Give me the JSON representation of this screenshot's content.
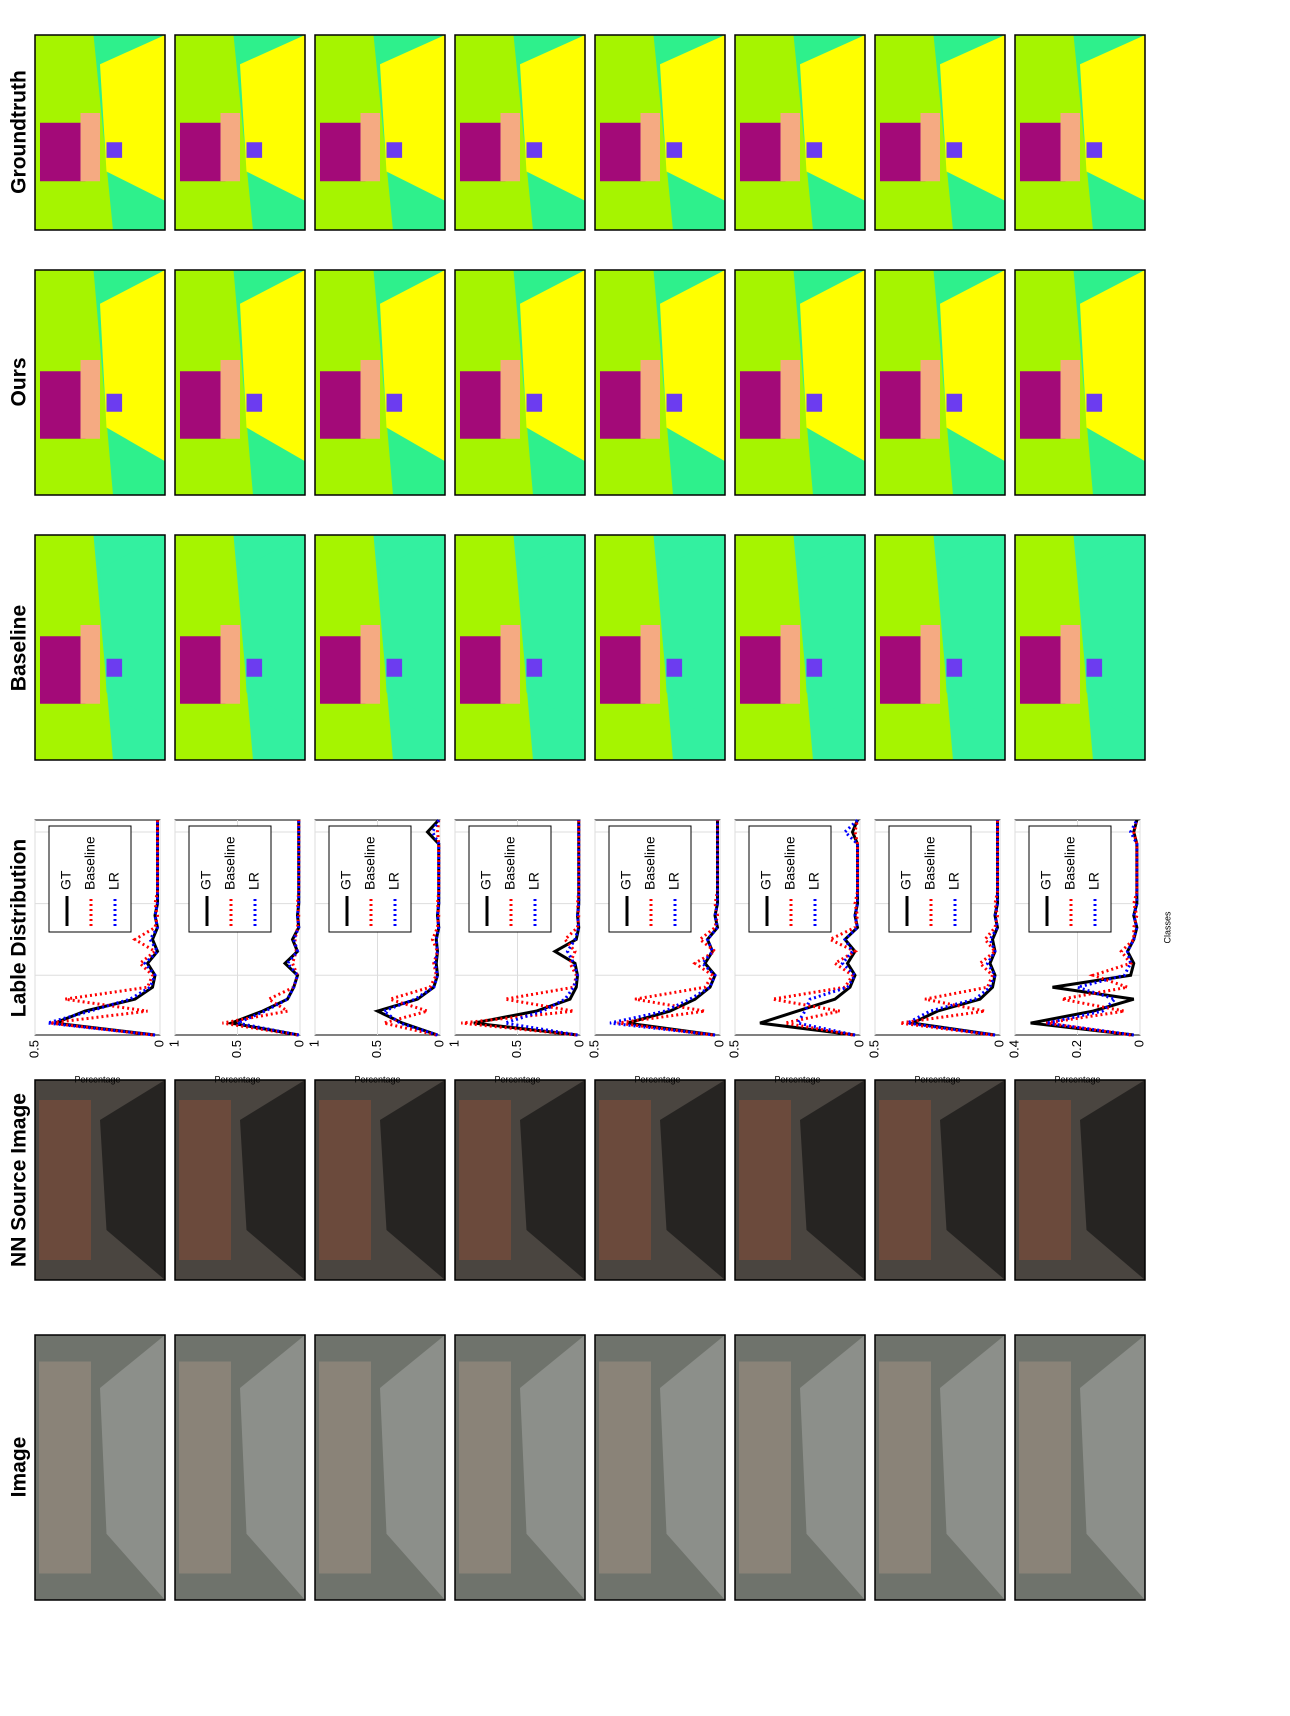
{
  "header": [
    "Image",
    "NN Source Image",
    "Lable Distribution",
    "Baseline",
    "Ours",
    "Groundtruth"
  ],
  "chart_data": [
    {
      "type": "line",
      "ylabel": "Percentage",
      "x": [
        1,
        2,
        3,
        4,
        5,
        6,
        7,
        8,
        9,
        10,
        11,
        12,
        13,
        14,
        15,
        16,
        17,
        18,
        19
      ],
      "xlim": [
        1,
        19
      ],
      "xticks": [
        6,
        12,
        18
      ],
      "ylim": [
        0,
        0.5
      ],
      "yticks": [
        0,
        0.5
      ],
      "grid": true,
      "legend": "upper right",
      "series": [
        {
          "name": "GT",
          "color": "#000000",
          "style": "solid",
          "values": [
            0.02,
            0.42,
            0.3,
            0.1,
            0.03,
            0.02,
            0.05,
            0.01,
            0.03,
            0.01,
            0.02,
            0.01,
            0.01,
            0.01,
            0.01,
            0.01,
            0.01,
            0.01,
            0.01
          ]
        },
        {
          "name": "Baseline",
          "color": "#ff0000",
          "style": "dotted",
          "values": [
            0.03,
            0.44,
            0.05,
            0.38,
            0.05,
            0.03,
            0.08,
            0.02,
            0.1,
            0.02,
            0.01,
            0.02,
            0.01,
            0.01,
            0.01,
            0.01,
            0.01,
            0.01,
            0.01
          ]
        },
        {
          "name": "LR",
          "color": "#0000ff",
          "style": "dotted",
          "values": [
            0.02,
            0.45,
            0.28,
            0.12,
            0.04,
            0.02,
            0.06,
            0.01,
            0.04,
            0.01,
            0.02,
            0.01,
            0.01,
            0.01,
            0.01,
            0.01,
            0.01,
            0.01,
            0.01
          ]
        }
      ]
    },
    {
      "type": "line",
      "ylabel": "Percentage",
      "x": [
        1,
        2,
        3,
        4,
        5,
        6,
        7,
        8,
        9,
        10,
        11,
        12,
        13,
        14,
        15,
        16,
        17,
        18,
        19
      ],
      "xlim": [
        1,
        19
      ],
      "xticks": [
        6,
        12,
        18
      ],
      "ylim": [
        0,
        1
      ],
      "yticks": [
        0,
        0.5,
        1
      ],
      "grid": true,
      "legend": "upper right",
      "series": [
        {
          "name": "GT",
          "color": "#000000",
          "style": "solid",
          "values": [
            0.01,
            0.55,
            0.3,
            0.1,
            0.05,
            0.02,
            0.12,
            0.02,
            0.06,
            0.01,
            0.02,
            0.01,
            0.01,
            0.01,
            0.01,
            0.01,
            0.01,
            0.01,
            0.01
          ]
        },
        {
          "name": "Baseline",
          "color": "#ff0000",
          "style": "dotted",
          "values": [
            0.02,
            0.62,
            0.1,
            0.25,
            0.05,
            0.02,
            0.06,
            0.03,
            0.04,
            0.02,
            0.01,
            0.02,
            0.01,
            0.01,
            0.01,
            0.01,
            0.01,
            0.01,
            0.01
          ]
        },
        {
          "name": "LR",
          "color": "#0000ff",
          "style": "dotted",
          "values": [
            0.01,
            0.5,
            0.28,
            0.1,
            0.05,
            0.02,
            0.1,
            0.02,
            0.05,
            0.01,
            0.02,
            0.01,
            0.01,
            0.01,
            0.01,
            0.01,
            0.01,
            0.01,
            0.01
          ]
        }
      ]
    },
    {
      "type": "line",
      "ylabel": "Percentage",
      "x": [
        1,
        2,
        3,
        4,
        5,
        6,
        7,
        8,
        9,
        10,
        11,
        12,
        13,
        14,
        15,
        16,
        17,
        18,
        19
      ],
      "xlim": [
        1,
        19
      ],
      "xticks": [
        6,
        12,
        18
      ],
      "ylim": [
        0,
        1
      ],
      "yticks": [
        0,
        0.5,
        1
      ],
      "grid": true,
      "legend": "upper right",
      "series": [
        {
          "name": "GT",
          "color": "#000000",
          "style": "solid",
          "values": [
            0.02,
            0.3,
            0.5,
            0.18,
            0.05,
            0.02,
            0.03,
            0.02,
            0.03,
            0.01,
            0.02,
            0.01,
            0.01,
            0.01,
            0.01,
            0.01,
            0.01,
            0.1,
            0.01
          ]
        },
        {
          "name": "Baseline",
          "color": "#ff0000",
          "style": "dotted",
          "values": [
            0.03,
            0.45,
            0.1,
            0.4,
            0.08,
            0.03,
            0.05,
            0.02,
            0.06,
            0.02,
            0.01,
            0.02,
            0.01,
            0.01,
            0.01,
            0.01,
            0.01,
            0.02,
            0.01
          ]
        },
        {
          "name": "LR",
          "color": "#0000ff",
          "style": "dotted",
          "values": [
            0.02,
            0.32,
            0.45,
            0.2,
            0.05,
            0.02,
            0.04,
            0.02,
            0.03,
            0.01,
            0.02,
            0.01,
            0.01,
            0.01,
            0.01,
            0.01,
            0.01,
            0.06,
            0.01
          ]
        }
      ]
    },
    {
      "type": "line",
      "ylabel": "Percentage",
      "x": [
        1,
        2,
        3,
        4,
        5,
        6,
        7,
        8,
        9,
        10,
        11,
        12,
        13,
        14,
        15,
        16,
        17,
        18,
        19
      ],
      "xlim": [
        1,
        19
      ],
      "xticks": [
        6,
        12,
        18
      ],
      "ylim": [
        0,
        1
      ],
      "yticks": [
        0,
        0.5,
        1
      ],
      "grid": true,
      "legend": "upper right",
      "series": [
        {
          "name": "GT",
          "color": "#000000",
          "style": "solid",
          "values": [
            0.02,
            0.85,
            0.35,
            0.08,
            0.03,
            0.02,
            0.04,
            0.2,
            0.03,
            0.01,
            0.02,
            0.01,
            0.01,
            0.01,
            0.01,
            0.01,
            0.01,
            0.01,
            0.01
          ]
        },
        {
          "name": "Baseline",
          "color": "#ff0000",
          "style": "dotted",
          "values": [
            0.03,
            0.95,
            0.05,
            0.6,
            0.05,
            0.03,
            0.08,
            0.04,
            0.12,
            0.02,
            0.01,
            0.02,
            0.01,
            0.01,
            0.01,
            0.01,
            0.01,
            0.01,
            0.01
          ]
        },
        {
          "name": "LR",
          "color": "#0000ff",
          "style": "dotted",
          "values": [
            0.02,
            0.6,
            0.3,
            0.12,
            0.05,
            0.02,
            0.05,
            0.1,
            0.04,
            0.01,
            0.02,
            0.01,
            0.01,
            0.01,
            0.01,
            0.01,
            0.01,
            0.01,
            0.01
          ]
        }
      ]
    },
    {
      "type": "line",
      "ylabel": "Percentage",
      "x": [
        1,
        2,
        3,
        4,
        5,
        6,
        7,
        8,
        9,
        10,
        11,
        12,
        13,
        14,
        15,
        16,
        17,
        18,
        19
      ],
      "xlim": [
        1,
        19
      ],
      "xticks": [
        6,
        12,
        18
      ],
      "ylim": [
        0,
        0.5
      ],
      "yticks": [
        0,
        0.5
      ],
      "grid": true,
      "legend": "upper right",
      "series": [
        {
          "name": "GT",
          "color": "#000000",
          "style": "solid",
          "values": [
            0.02,
            0.37,
            0.2,
            0.1,
            0.04,
            0.02,
            0.06,
            0.03,
            0.05,
            0.01,
            0.02,
            0.01,
            0.01,
            0.01,
            0.01,
            0.01,
            0.01,
            0.01,
            0.01
          ]
        },
        {
          "name": "Baseline",
          "color": "#ff0000",
          "style": "dotted",
          "values": [
            0.03,
            0.41,
            0.06,
            0.34,
            0.06,
            0.03,
            0.1,
            0.02,
            0.08,
            0.02,
            0.01,
            0.02,
            0.01,
            0.01,
            0.01,
            0.01,
            0.01,
            0.01,
            0.01
          ]
        },
        {
          "name": "LR",
          "color": "#0000ff",
          "style": "dotted",
          "values": [
            0.02,
            0.44,
            0.22,
            0.12,
            0.04,
            0.02,
            0.07,
            0.03,
            0.05,
            0.01,
            0.02,
            0.01,
            0.01,
            0.01,
            0.01,
            0.01,
            0.01,
            0.01,
            0.01
          ]
        }
      ]
    },
    {
      "type": "line",
      "ylabel": "Percentage",
      "x": [
        1,
        2,
        3,
        4,
        5,
        6,
        7,
        8,
        9,
        10,
        11,
        12,
        13,
        14,
        15,
        16,
        17,
        18,
        19
      ],
      "xlim": [
        1,
        19
      ],
      "xticks": [
        6,
        12,
        18
      ],
      "ylim": [
        0,
        0.5
      ],
      "yticks": [
        0,
        0.5
      ],
      "grid": true,
      "legend": "upper right",
      "series": [
        {
          "name": "GT",
          "color": "#000000",
          "style": "solid",
          "values": [
            0.02,
            0.4,
            0.25,
            0.1,
            0.04,
            0.02,
            0.05,
            0.02,
            0.06,
            0.01,
            0.02,
            0.01,
            0.01,
            0.01,
            0.01,
            0.01,
            0.01,
            0.03,
            0.01
          ]
        },
        {
          "name": "Baseline",
          "color": "#ff0000",
          "style": "dotted",
          "values": [
            0.03,
            0.3,
            0.08,
            0.35,
            0.06,
            0.03,
            0.1,
            0.02,
            0.12,
            0.02,
            0.01,
            0.02,
            0.01,
            0.01,
            0.01,
            0.01,
            0.01,
            0.02,
            0.01
          ]
        },
        {
          "name": "LR",
          "color": "#0000ff",
          "style": "dotted",
          "values": [
            0.02,
            0.25,
            0.22,
            0.2,
            0.05,
            0.02,
            0.07,
            0.03,
            0.06,
            0.01,
            0.02,
            0.01,
            0.01,
            0.01,
            0.01,
            0.01,
            0.01,
            0.06,
            0.01
          ]
        }
      ]
    },
    {
      "type": "line",
      "ylabel": "Percentage",
      "x": [
        1,
        2,
        3,
        4,
        5,
        6,
        7,
        8,
        9,
        10,
        11,
        12,
        13,
        14,
        15,
        16,
        17,
        18,
        19
      ],
      "xlim": [
        1,
        19
      ],
      "xticks": [
        6,
        12,
        18
      ],
      "ylim": [
        0,
        0.5
      ],
      "yticks": [
        0,
        0.5
      ],
      "grid": true,
      "legend": "upper right",
      "series": [
        {
          "name": "GT",
          "color": "#000000",
          "style": "solid",
          "values": [
            0.02,
            0.35,
            0.25,
            0.08,
            0.03,
            0.02,
            0.04,
            0.02,
            0.03,
            0.01,
            0.02,
            0.01,
            0.01,
            0.01,
            0.01,
            0.01,
            0.01,
            0.01,
            0.01
          ]
        },
        {
          "name": "Baseline",
          "color": "#ff0000",
          "style": "dotted",
          "values": [
            0.03,
            0.4,
            0.06,
            0.3,
            0.05,
            0.03,
            0.08,
            0.02,
            0.06,
            0.02,
            0.01,
            0.02,
            0.01,
            0.01,
            0.01,
            0.01,
            0.01,
            0.01,
            0.01
          ]
        },
        {
          "name": "LR",
          "color": "#0000ff",
          "style": "dotted",
          "values": [
            0.02,
            0.37,
            0.28,
            0.1,
            0.04,
            0.02,
            0.05,
            0.02,
            0.04,
            0.01,
            0.02,
            0.01,
            0.01,
            0.01,
            0.01,
            0.01,
            0.01,
            0.01,
            0.01
          ]
        }
      ]
    },
    {
      "type": "line",
      "ylabel": "Percentage",
      "xlabel": "Classes",
      "x": [
        1,
        2,
        3,
        4,
        5,
        6,
        7,
        8,
        9,
        10,
        11,
        12,
        13,
        14,
        15,
        16,
        17,
        18,
        19
      ],
      "xlim": [
        1,
        19
      ],
      "xticks": [
        6,
        12,
        18
      ],
      "ylim": [
        0,
        0.4
      ],
      "yticks": [
        0,
        0.2,
        0.4
      ],
      "grid": true,
      "legend": "upper right",
      "series": [
        {
          "name": "GT",
          "color": "#000000",
          "style": "solid",
          "values": [
            0.02,
            0.35,
            0.15,
            0.02,
            0.28,
            0.03,
            0.02,
            0.04,
            0.02,
            0.01,
            0.02,
            0.01,
            0.01,
            0.01,
            0.01,
            0.01,
            0.01,
            0.02,
            0.01
          ]
        },
        {
          "name": "Baseline",
          "color": "#ff0000",
          "style": "dotted",
          "values": [
            0.03,
            0.3,
            0.05,
            0.25,
            0.04,
            0.15,
            0.03,
            0.06,
            0.02,
            0.02,
            0.01,
            0.02,
            0.01,
            0.01,
            0.01,
            0.01,
            0.01,
            0.02,
            0.01
          ]
        },
        {
          "name": "LR",
          "color": "#0000ff",
          "style": "dotted",
          "values": [
            0.02,
            0.3,
            0.12,
            0.08,
            0.2,
            0.05,
            0.03,
            0.04,
            0.02,
            0.01,
            0.02,
            0.01,
            0.01,
            0.01,
            0.01,
            0.01,
            0.01,
            0.03,
            0.01
          ]
        }
      ]
    }
  ]
}
